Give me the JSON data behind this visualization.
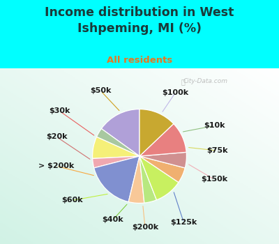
{
  "title": "Income distribution in West\nIshpeming, MI (%)",
  "subtitle": "All residents",
  "title_color": "#1a3a3a",
  "subtitle_color": "#e87820",
  "bg_cyan": "#00ffff",
  "labels": [
    "$100k",
    "$10k",
    "$75k",
    "$150k",
    "$125k",
    "$200k",
    "$40k",
    "$60k",
    "> $200k",
    "$20k",
    "$30k",
    "$50k"
  ],
  "values": [
    14,
    3,
    7,
    3,
    16,
    5,
    4,
    9,
    5,
    5,
    10,
    12
  ],
  "colors": [
    "#b0a0d8",
    "#a8c8a0",
    "#f5f078",
    "#f0a8b0",
    "#8090d0",
    "#f8c898",
    "#b8e880",
    "#c8f060",
    "#f0b070",
    "#d09090",
    "#e88080",
    "#c8a830"
  ],
  "label_fontsize": 8,
  "watermark": "City-Data.com",
  "startangle": 90
}
